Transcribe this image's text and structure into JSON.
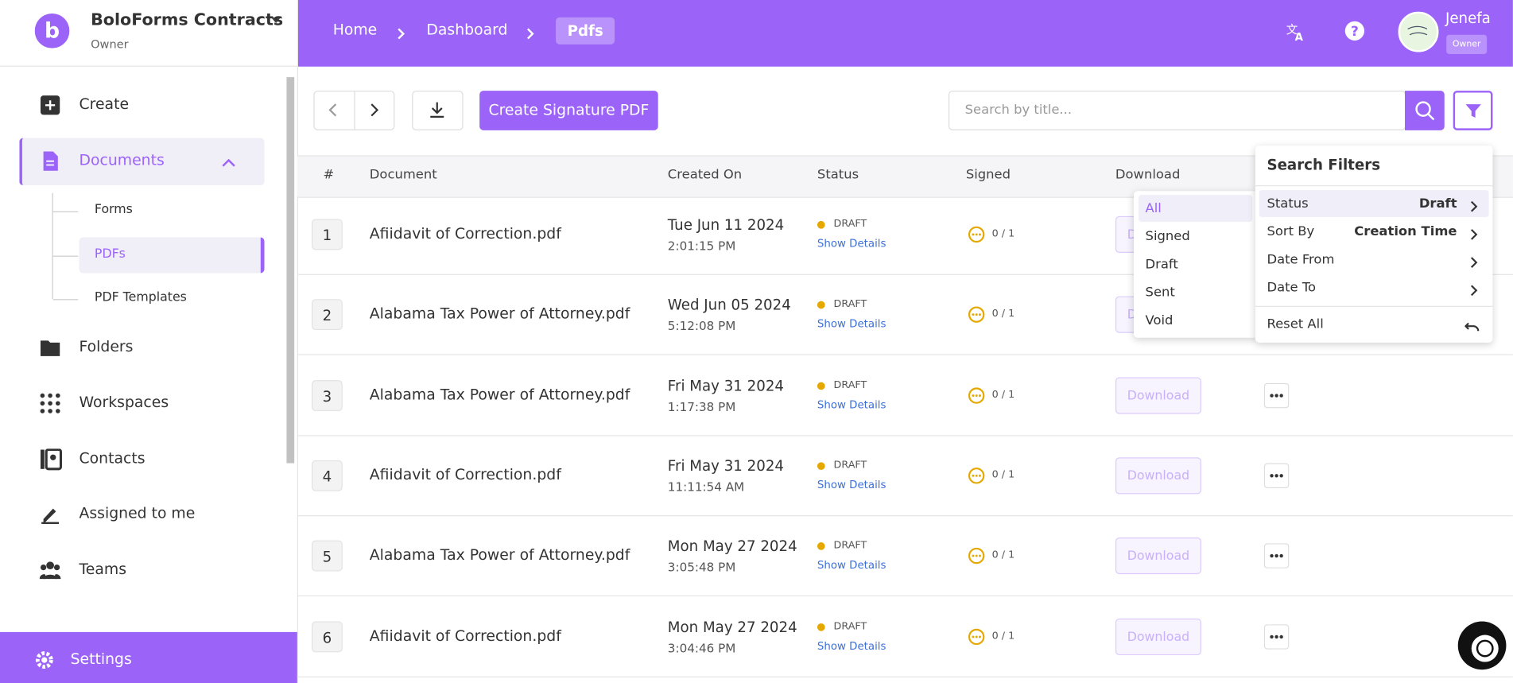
{
  "sidebar": {
    "org": "BoloForms Contracts",
    "role": "Owner",
    "nav": [
      "Create",
      "Documents",
      "Folders",
      "Workspaces",
      "Contacts",
      "Assigned to me",
      "Teams"
    ],
    "documents_sub": [
      "Forms",
      "PDFs",
      "PDF Templates"
    ],
    "settings": "Settings"
  },
  "header": {
    "breadcrumbs": [
      "Home",
      "Dashboard",
      "Pdfs"
    ],
    "user": {
      "name": "Jenefa",
      "role": "Owner"
    }
  },
  "toolbar": {
    "create_button": "Create Signature PDF",
    "search_placeholder": "Search by title..."
  },
  "table": {
    "columns": [
      "#",
      "Document",
      "Created On",
      "Status",
      "Signed",
      "Download"
    ],
    "rows": [
      {
        "index": 1,
        "document": "Afiidavit of Correction.pdf",
        "date": "Tue Jun 11 2024",
        "time": "2:01:15 PM",
        "status": "DRAFT",
        "details": "Show Details",
        "signed": "0 / 1",
        "download": "Download"
      },
      {
        "index": 2,
        "document": "Alabama Tax Power of Attorney.pdf",
        "date": "Wed Jun 05 2024",
        "time": "5:12:08 PM",
        "status": "DRAFT",
        "details": "Show Details",
        "signed": "0 / 1",
        "download": "Download"
      },
      {
        "index": 3,
        "document": "Alabama Tax Power of Attorney.pdf",
        "date": "Fri May 31 2024",
        "time": "1:17:38 PM",
        "status": "DRAFT",
        "details": "Show Details",
        "signed": "0 / 1",
        "download": "Download"
      },
      {
        "index": 4,
        "document": "Afiidavit of Correction.pdf",
        "date": "Fri May 31 2024",
        "time": "11:11:54 AM",
        "status": "DRAFT",
        "details": "Show Details",
        "signed": "0 / 1",
        "download": "Download"
      },
      {
        "index": 5,
        "document": "Alabama Tax Power of Attorney.pdf",
        "date": "Mon May 27 2024",
        "time": "3:05:48 PM",
        "status": "DRAFT",
        "details": "Show Details",
        "signed": "0 / 1",
        "download": "Download"
      },
      {
        "index": 6,
        "document": "Afiidavit of Correction.pdf",
        "date": "Mon May 27 2024",
        "time": "3:04:46 PM",
        "status": "DRAFT",
        "details": "Show Details",
        "signed": "0 / 1",
        "download": "Download"
      }
    ]
  },
  "filters": {
    "title": "Search Filters",
    "items": [
      {
        "label": "Status",
        "value": "Draft"
      },
      {
        "label": "Sort By",
        "value": "Creation Time"
      },
      {
        "label": "Date From"
      },
      {
        "label": "Date To"
      }
    ],
    "reset": "Reset All",
    "status_options": [
      "All",
      "Signed",
      "Draft",
      "Sent",
      "Void"
    ]
  }
}
